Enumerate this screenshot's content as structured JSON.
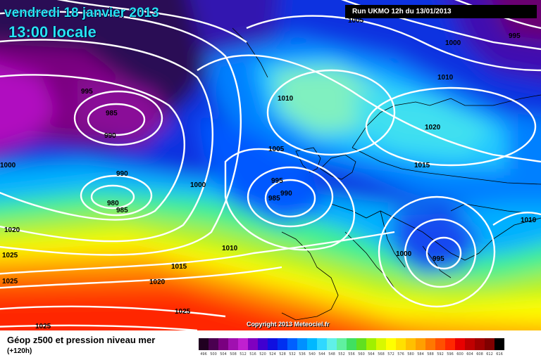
{
  "header": {
    "date": "vendredi 18 janvier 2013",
    "hour": "13:00 locale",
    "run": "Run UKMO 12h du 13/01/2013"
  },
  "copyright": "Copyright 2013 Meteociel.fr",
  "footer": {
    "title": "Géop z500 et pression niveau mer",
    "subtitle": "(+120h)"
  },
  "isobar_labels": [
    "1005",
    "995",
    "1000",
    "995",
    "985",
    "990",
    "1000",
    "990",
    "980",
    "985",
    "1000",
    "1020",
    "1025",
    "1025",
    "1025",
    "1010",
    "1015",
    "1020",
    "1025",
    "1010",
    "1005",
    "995",
    "985",
    "990",
    "1010",
    "1020",
    "1015",
    "1000",
    "995",
    "1010"
  ],
  "scale": {
    "values": [
      "496",
      "500",
      "504",
      "508",
      "512",
      "516",
      "520",
      "524",
      "528",
      "532",
      "536",
      "540",
      "544",
      "548",
      "552",
      "556",
      "560",
      "564",
      "568",
      "572",
      "576",
      "580",
      "584",
      "588",
      "592",
      "596",
      "600",
      "604",
      "608",
      "612",
      "616"
    ],
    "colors": [
      "#200020",
      "#4a0050",
      "#7a0080",
      "#a010b0",
      "#c020d0",
      "#8000c0",
      "#4000d0",
      "#1010e0",
      "#0030f0",
      "#0060ff",
      "#0090ff",
      "#00b8ff",
      "#30d8ff",
      "#60f0e8",
      "#60f0a0",
      "#40e060",
      "#60e020",
      "#a0f000",
      "#d8f800",
      "#ffff00",
      "#ffe000",
      "#ffc000",
      "#ffa000",
      "#ff7800",
      "#ff5000",
      "#ff2800",
      "#e80000",
      "#c00000",
      "#a00000",
      "#800000",
      "#000000"
    ]
  }
}
